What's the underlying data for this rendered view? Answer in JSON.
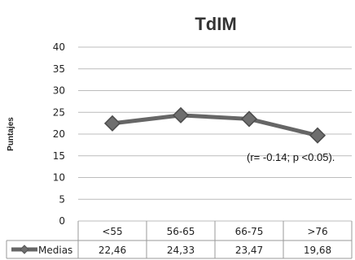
{
  "chart_data": {
    "type": "line",
    "title": "TdIM",
    "xlabel": "",
    "ylabel": "Puntajes",
    "ylim": [
      0,
      40
    ],
    "yticks": [
      0,
      5,
      10,
      15,
      20,
      25,
      30,
      35,
      40
    ],
    "categories": [
      "<55",
      "56-65",
      "66-75",
      ">76"
    ],
    "series": [
      {
        "name": "Medias",
        "values": [
          22.46,
          24.33,
          23.47,
          19.68
        ],
        "labels": [
          "22,46",
          "24,33",
          "23,47",
          "19,68"
        ],
        "color": "#666666"
      }
    ],
    "annotation": "(r= -0.14; p <0.05).",
    "grid": true,
    "legend": "data-table"
  }
}
